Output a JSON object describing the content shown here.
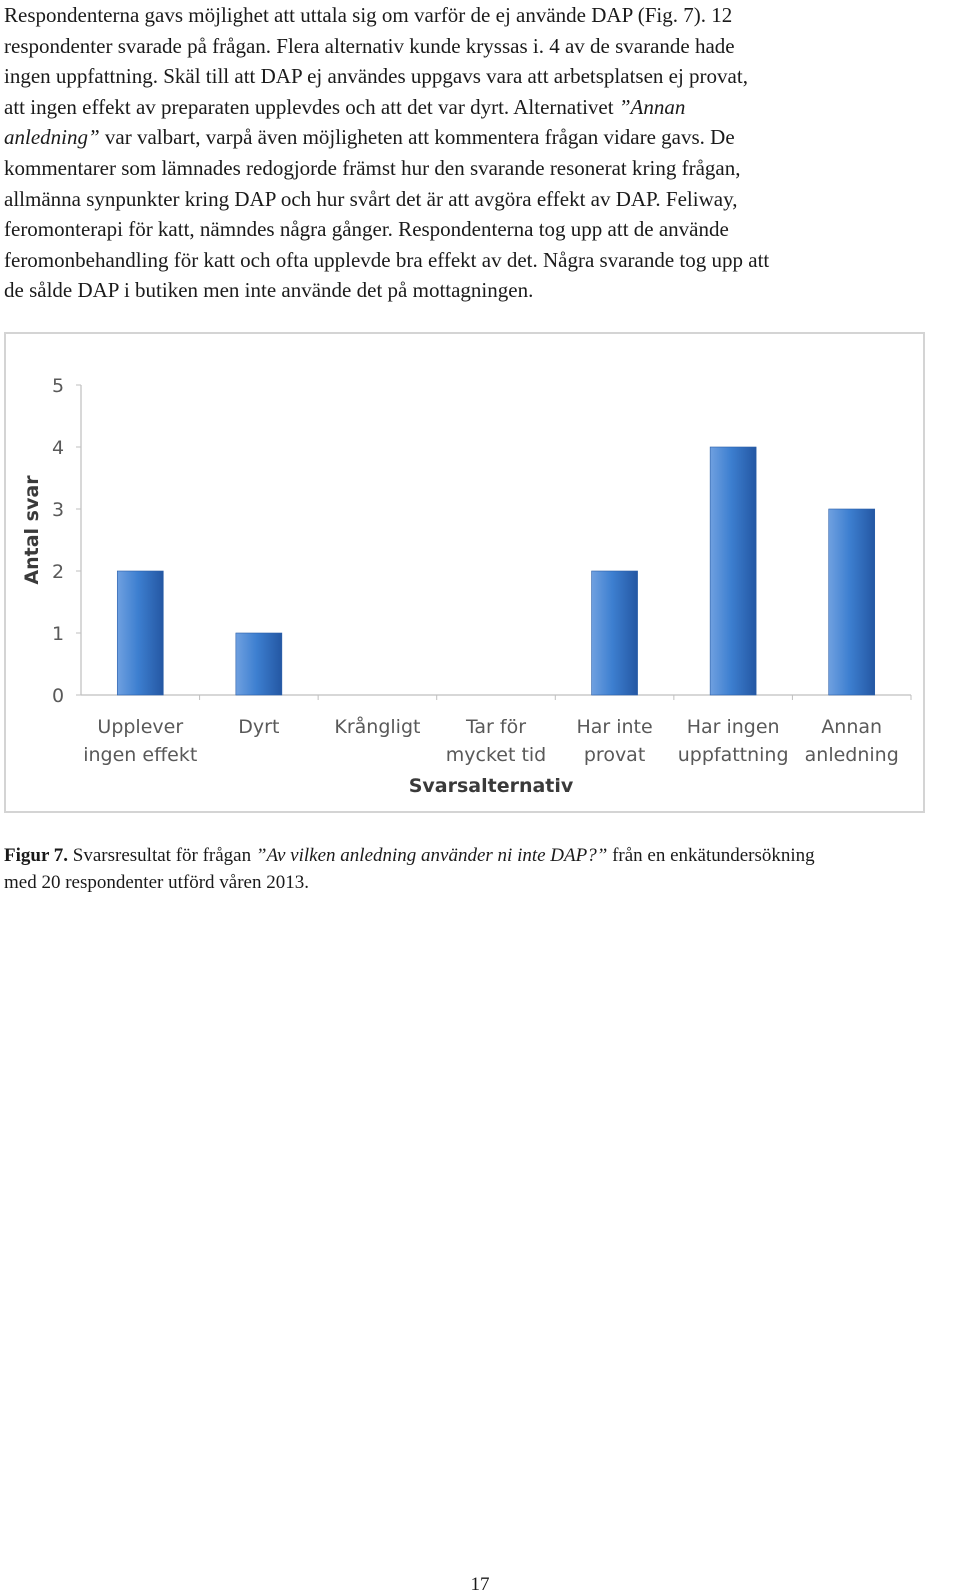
{
  "body_text": {
    "l1": "Respondenterna gavs möjlighet att uttala sig om varför de ej använde DAP (Fig. 7). 12",
    "l2": "respondenter svarade på frågan. Flera alternativ kunde kryssas i. 4 av de svarande hade",
    "l3": "ingen uppfattning. Skäl till att DAP ej användes uppgavs vara att arbetsplatsen ej provat,",
    "l4": "att ingen effekt av preparaten upplevdes och att det var dyrt.",
    "l5_pre": "Alternativet ",
    "l5_italic": "”Annan",
    "l6_italic": "anledning”",
    "l6_post": " var valbart, varpå även  möjligheten att kommentera frågan vidare gavs.",
    "l6_tail": "De",
    "l7": "kommentarer som lämnades redogjorde främst hur den svarande resonerat kring frågan,",
    "l8": "allmänna synpunkter kring DAP och hur svårt det är att avgöra effekt av DAP. Feliway,",
    "l9": "feromonterapi för katt, nämndes några gånger. Respondenterna tog upp att de använde",
    "l10": "feromonbehandling för katt och ofta upplevde bra effekt av det. Några svarande tog upp att",
    "l11": "de sålde DAP i butiken men inte använde det på mottagningen."
  },
  "chart_data": {
    "type": "bar",
    "categories": [
      [
        "Upplever",
        "ingen effekt"
      ],
      [
        "Dyrt"
      ],
      [
        "Krångligt"
      ],
      [
        "Tar för",
        "mycket tid"
      ],
      [
        "Har inte",
        "provat"
      ],
      [
        "Har ingen",
        "uppfattning"
      ],
      [
        "Annan",
        "anledning"
      ]
    ],
    "values": [
      2,
      1,
      0,
      0,
      2,
      4,
      3
    ],
    "yticks": [
      "0",
      "1",
      "2",
      "3",
      "4",
      "5"
    ],
    "ylim": [
      0,
      5
    ],
    "xlabel": "Svarsalternativ",
    "ylabel": "Antal svar",
    "bar_color_light": "#6fa0e0",
    "bar_color_mid": "#3d7fd0",
    "bar_color_dark": "#2457a3",
    "grid": false
  },
  "caption": {
    "label": "Figur 7.",
    "pre": " Svarsresultat för frågan ",
    "italic": "”Av vilken anledning använder ni inte DAP?”",
    "post": " från en enkätundersökning",
    "line2": "med 20 respondenter utförd våren 2013."
  },
  "page_number": "17"
}
